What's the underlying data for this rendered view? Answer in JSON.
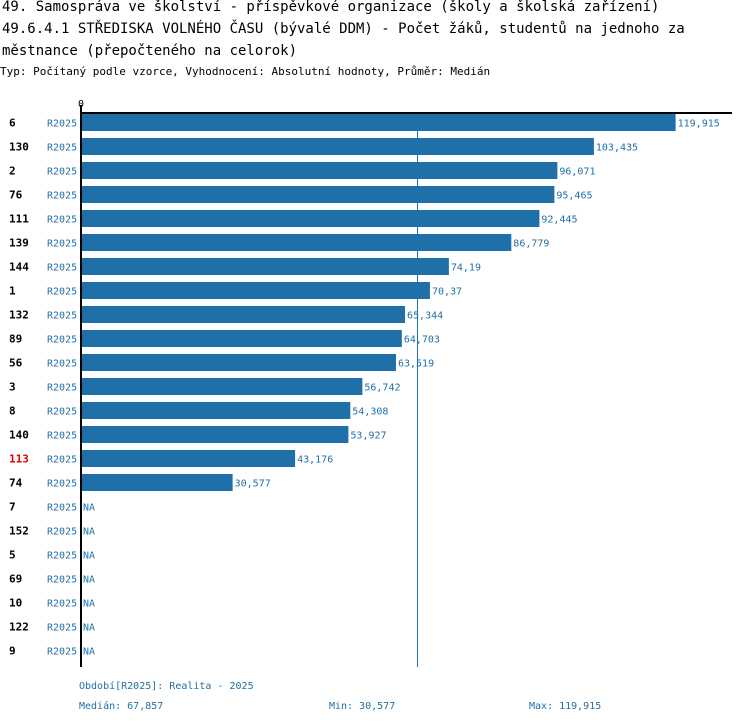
{
  "title_line1": "49. Samospráva ve školství - příspěvkové organizace (školy a školská zařízení)",
  "title_line2": "49.6.4.1 STŘEDISKA VOLNÉHO ČASU (bývalé DDM) - Počet žáků, studentů na jednoho za",
  "title_line3": "městnance (přepočteného na celorok)",
  "subtitle": "Typ: Počítaný podle vzorce, Vyhodnocení: Absolutní hodnoty, Průměr: Medián",
  "footer": {
    "period": "Období[R2025]: Realita - 2025",
    "median": "Medián: 67,857",
    "min": "Min: 30,577",
    "max": "Max: 119,915"
  },
  "colors": {
    "bar": "#1f6fa8",
    "label_text": "#1f6fa8",
    "highlight": "#e00000",
    "axis": "#000000"
  },
  "chart_data": {
    "type": "bar",
    "orientation": "horizontal",
    "axis_zero_label": "0",
    "series_label": "R2025",
    "median": 67.857,
    "xlim": [
      0,
      121
    ],
    "highlighted_category": "113",
    "categories": [
      "6",
      "130",
      "2",
      "76",
      "111",
      "139",
      "144",
      "1",
      "132",
      "89",
      "56",
      "3",
      "8",
      "140",
      "113",
      "74",
      "7",
      "152",
      "5",
      "69",
      "10",
      "122",
      "9"
    ],
    "values": [
      119.915,
      103.435,
      96.071,
      95.465,
      92.445,
      86.779,
      74.19,
      70.37,
      65.344,
      64.703,
      63.519,
      56.742,
      54.308,
      53.927,
      43.176,
      30.577,
      null,
      null,
      null,
      null,
      null,
      null,
      null
    ],
    "value_labels": [
      "119,915",
      "103,435",
      "96,071",
      "95,465",
      "92,445",
      "86,779",
      "74,19",
      "70,37",
      "65,344",
      "64,703",
      "63,519",
      "56,742",
      "54,308",
      "53,927",
      "43,176",
      "30,577",
      "NA",
      "NA",
      "NA",
      "NA",
      "NA",
      "NA",
      "NA"
    ]
  }
}
